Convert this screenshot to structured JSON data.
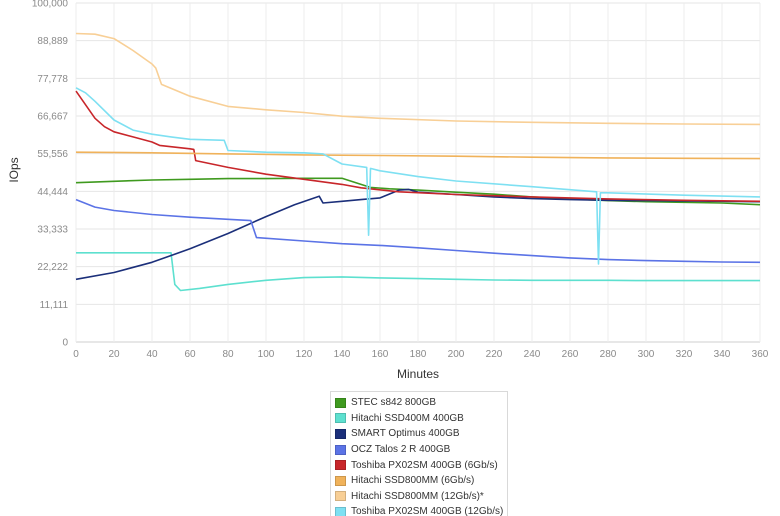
{
  "chart_data": {
    "type": "line",
    "xlabel": "Minutes",
    "ylabel": "IOps",
    "xlim": [
      0,
      360
    ],
    "ylim": [
      0,
      100000
    ],
    "x_ticks": [
      "0",
      "20",
      "40",
      "60",
      "80",
      "100",
      "120",
      "140",
      "160",
      "180",
      "200",
      "220",
      "240",
      "260",
      "280",
      "300",
      "320",
      "340",
      "360"
    ],
    "y_ticks": [
      "0",
      "11,111",
      "22,222",
      "33,333",
      "44,444",
      "55,556",
      "66,667",
      "77,778",
      "88,889",
      "100,000"
    ],
    "grid": true,
    "legend_position": "bottom",
    "series": [
      {
        "name": "STEC s842 800GB",
        "color": "#3f9a1f",
        "x": [
          0,
          20,
          40,
          60,
          80,
          100,
          120,
          140,
          150,
          155,
          165,
          180,
          200,
          220,
          240,
          260,
          280,
          300,
          320,
          340,
          360
        ],
        "y": [
          47000,
          47400,
          47800,
          48000,
          48200,
          48200,
          48300,
          48300,
          46500,
          45600,
          45200,
          44800,
          44200,
          43600,
          42800,
          42200,
          41700,
          41400,
          41200,
          41000,
          40500
        ]
      },
      {
        "name": "Hitachi SSD400M 400GB",
        "color": "#5de0cf",
        "x": [
          0,
          20,
          40,
          50,
          52,
          55,
          65,
          80,
          100,
          120,
          140,
          160,
          180,
          200,
          220,
          240,
          260,
          280,
          300,
          320,
          340,
          360
        ],
        "y": [
          26300,
          26300,
          26300,
          26300,
          17000,
          15200,
          15800,
          17000,
          18200,
          19000,
          19200,
          18900,
          18700,
          18500,
          18300,
          18200,
          18200,
          18200,
          18100,
          18100,
          18100,
          18100
        ]
      },
      {
        "name": "SMART Optimus 400GB",
        "color": "#1b2f7a",
        "x": [
          0,
          20,
          40,
          60,
          80,
          100,
          115,
          128,
          130,
          140,
          150,
          160,
          170,
          175,
          180,
          200,
          220,
          240,
          260,
          280,
          300,
          320,
          340,
          360
        ],
        "y": [
          18500,
          20500,
          23500,
          27500,
          32000,
          37000,
          40500,
          43000,
          41000,
          41500,
          42000,
          42500,
          44800,
          45000,
          44200,
          43500,
          42800,
          42300,
          42000,
          41800,
          41700,
          41600,
          41500,
          41400
        ]
      },
      {
        "name": "OCZ Talos 2 R 400GB",
        "color": "#5b73e6",
        "x": [
          0,
          10,
          20,
          40,
          60,
          80,
          92,
          95,
          120,
          140,
          160,
          180,
          200,
          220,
          240,
          260,
          280,
          300,
          320,
          340,
          360
        ],
        "y": [
          42000,
          39800,
          38800,
          37600,
          36800,
          36200,
          35800,
          30800,
          29800,
          29000,
          28500,
          27800,
          27000,
          26200,
          25500,
          24800,
          24300,
          24000,
          23800,
          23600,
          23500
        ]
      },
      {
        "name": "Toshiba PX02SM 400GB (6Gb/s)",
        "color": "#c8262a",
        "x": [
          0,
          5,
          10,
          15,
          20,
          30,
          40,
          44,
          60,
          62,
          63,
          80,
          100,
          120,
          140,
          150,
          170,
          200,
          240,
          280,
          320,
          360
        ],
        "y": [
          74000,
          70000,
          66000,
          63500,
          62000,
          60500,
          59000,
          58000,
          57000,
          56800,
          53500,
          51500,
          49500,
          48000,
          46500,
          45500,
          44300,
          43500,
          42800,
          42200,
          41800,
          41500
        ]
      },
      {
        "name": "Hitachi SSD800MM (6Gb/s)",
        "color": "#f0b25a",
        "x": [
          0,
          40,
          80,
          120,
          160,
          200,
          240,
          280,
          320,
          360
        ],
        "y": [
          56000,
          55800,
          55500,
          55200,
          55000,
          54800,
          54500,
          54300,
          54200,
          54100
        ]
      },
      {
        "name": "Hitachi SSD800MM (12Gb/s)*",
        "color": "#f8cf96",
        "x": [
          0,
          10,
          20,
          30,
          40,
          42,
          45,
          60,
          80,
          100,
          120,
          140,
          160,
          200,
          240,
          280,
          320,
          360
        ],
        "y": [
          91000,
          90800,
          89500,
          86000,
          82000,
          80800,
          76000,
          72500,
          69500,
          68500,
          67700,
          66600,
          66000,
          65200,
          64800,
          64500,
          64300,
          64200
        ]
      },
      {
        "name": "Toshiba PX02SM 400GB (12Gb/s)",
        "color": "#7ee0f2",
        "x": [
          0,
          5,
          10,
          20,
          30,
          40,
          50,
          60,
          78,
          80,
          100,
          120,
          130,
          140,
          153,
          154,
          155,
          160,
          180,
          200,
          240,
          274,
          275,
          276,
          280,
          320,
          360
        ],
        "y": [
          75000,
          73500,
          71000,
          65500,
          62500,
          61300,
          60500,
          59800,
          59500,
          56500,
          56000,
          55800,
          55500,
          52500,
          51500,
          31500,
          51200,
          50500,
          48800,
          47500,
          45800,
          44300,
          23000,
          44000,
          44000,
          43300,
          42800
        ]
      }
    ]
  }
}
